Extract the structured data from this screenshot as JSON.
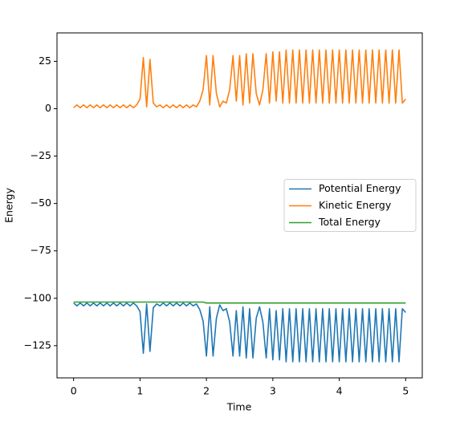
{
  "chart_data": {
    "type": "line",
    "xlabel": "Time",
    "ylabel": "Energy",
    "x": [
      0,
      0.05,
      0.1,
      0.15,
      0.2,
      0.25,
      0.3,
      0.35,
      0.4,
      0.45,
      0.5,
      0.55,
      0.6,
      0.65,
      0.7,
      0.75,
      0.8,
      0.85,
      0.9,
      0.95,
      1,
      1.05,
      1.1,
      1.15,
      1.2,
      1.25,
      1.3,
      1.35,
      1.4,
      1.45,
      1.5,
      1.55,
      1.6,
      1.65,
      1.7,
      1.75,
      1.8,
      1.85,
      1.9,
      1.95,
      2,
      2.05,
      2.1,
      2.15,
      2.2,
      2.25,
      2.3,
      2.35,
      2.4,
      2.45,
      2.5,
      2.55,
      2.6,
      2.65,
      2.7,
      2.75,
      2.8,
      2.85,
      2.9,
      2.95,
      3,
      3.05,
      3.1,
      3.15,
      3.2,
      3.25,
      3.3,
      3.35,
      3.4,
      3.45,
      3.5,
      3.55,
      3.6,
      3.65,
      3.7,
      3.75,
      3.8,
      3.85,
      3.9,
      3.95,
      4,
      4.05,
      4.1,
      4.15,
      4.2,
      4.25,
      4.3,
      4.35,
      4.4,
      4.45,
      4.5,
      4.55,
      4.6,
      4.65,
      4.7,
      4.75,
      4.8,
      4.85,
      4.9,
      4.95,
      5
    ],
    "series": [
      {
        "name": "Potential Energy",
        "color": "#1f77b4",
        "values": [
          -102.5,
          -104,
          -102.5,
          -104,
          -102.5,
          -104,
          -102.5,
          -104,
          -102.5,
          -104,
          -102.5,
          -104,
          -102.5,
          -104,
          -102.5,
          -104,
          -102.5,
          -104,
          -102.5,
          -104,
          -107,
          -129,
          -103,
          -128,
          -105,
          -103,
          -104,
          -102.5,
          -104,
          -102.5,
          -104,
          -102.5,
          -104,
          -102.5,
          -104,
          -102.5,
          -104,
          -103,
          -106,
          -112,
          -130.5,
          -104.5,
          -130.5,
          -110.5,
          -103.5,
          -106.5,
          -105.5,
          -112.5,
          -130.5,
          -106.5,
          -130.5,
          -104.5,
          -131.5,
          -105.5,
          -131.5,
          -110.5,
          -104.5,
          -112.5,
          -131.5,
          -105.5,
          -132.5,
          -106.5,
          -132.5,
          -105.5,
          -133.5,
          -105.5,
          -133.5,
          -105.5,
          -133.5,
          -105.5,
          -133.5,
          -105.5,
          -133.5,
          -105.5,
          -133.5,
          -105.5,
          -133.5,
          -105.5,
          -133.5,
          -105.5,
          -133.5,
          -105.5,
          -133.5,
          -105.5,
          -133.5,
          -105.5,
          -133.5,
          -105.5,
          -133.5,
          -105.5,
          -133.5,
          -105.5,
          -133.5,
          -105.5,
          -133.5,
          -105.5,
          -133.5,
          -105.5,
          -133.5,
          -105.5,
          -107.5
        ]
      },
      {
        "name": "Kinetic Energy",
        "color": "#ff7f0e",
        "values": [
          0.5,
          2,
          0.5,
          2,
          0.5,
          2,
          0.5,
          2,
          0.5,
          2,
          0.5,
          2,
          0.5,
          2,
          0.5,
          2,
          0.5,
          2,
          0.5,
          2,
          5,
          27,
          1,
          26,
          3,
          1,
          2,
          0.5,
          2,
          0.5,
          2,
          0.5,
          2,
          0.5,
          2,
          0.5,
          2,
          1,
          4,
          10,
          28,
          2,
          28,
          8,
          1,
          4,
          3,
          10,
          28,
          4,
          28,
          2,
          29,
          3,
          29,
          8,
          2,
          10,
          29,
          3,
          30,
          4,
          30,
          3,
          31,
          3,
          31,
          3,
          31,
          3,
          31,
          3,
          31,
          3,
          31,
          3,
          31,
          3,
          31,
          3,
          31,
          3,
          31,
          3,
          31,
          3,
          31,
          3,
          31,
          3,
          31,
          3,
          31,
          3,
          31,
          3,
          31,
          3,
          31,
          3,
          5
        ]
      },
      {
        "name": "Total Energy",
        "color": "#2ca02c",
        "values": [
          -102,
          -102,
          -102,
          -102,
          -102,
          -102,
          -102,
          -102,
          -102,
          -102,
          -102,
          -102,
          -102,
          -102,
          -102,
          -102,
          -102,
          -102,
          -102,
          -102,
          -102,
          -102,
          -102,
          -102,
          -102,
          -102,
          -102,
          -102,
          -102,
          -102,
          -102,
          -102,
          -102,
          -102,
          -102,
          -102,
          -102,
          -102,
          -102,
          -102,
          -102.5,
          -102.5,
          -102.5,
          -102.5,
          -102.5,
          -102.5,
          -102.5,
          -102.5,
          -102.5,
          -102.5,
          -102.5,
          -102.5,
          -102.5,
          -102.5,
          -102.5,
          -102.5,
          -102.5,
          -102.5,
          -102.5,
          -102.5,
          -102.5,
          -102.5,
          -102.5,
          -102.5,
          -102.5,
          -102.5,
          -102.5,
          -102.5,
          -102.5,
          -102.5,
          -102.5,
          -102.5,
          -102.5,
          -102.5,
          -102.5,
          -102.5,
          -102.5,
          -102.5,
          -102.5,
          -102.5,
          -102.5,
          -102.5,
          -102.5,
          -102.5,
          -102.5,
          -102.5,
          -102.5,
          -102.5,
          -102.5,
          -102.5,
          -102.5,
          -102.5,
          -102.5,
          -102.5,
          -102.5,
          -102.5,
          -102.5,
          -102.5,
          -102.5,
          -102.5,
          -102.5
        ]
      }
    ],
    "xlim": [
      -0.25,
      5.25
    ],
    "ylim": [
      -142,
      40
    ],
    "xticks": [
      0,
      1,
      2,
      3,
      4,
      5
    ],
    "yticks": [
      {
        "value": -125,
        "label": "−125"
      },
      {
        "value": -100,
        "label": "−100"
      },
      {
        "value": -75,
        "label": "−75"
      },
      {
        "value": -50,
        "label": "−50"
      },
      {
        "value": -25,
        "label": "−25"
      },
      0,
      25
    ],
    "grid": false,
    "legend": "center right"
  }
}
